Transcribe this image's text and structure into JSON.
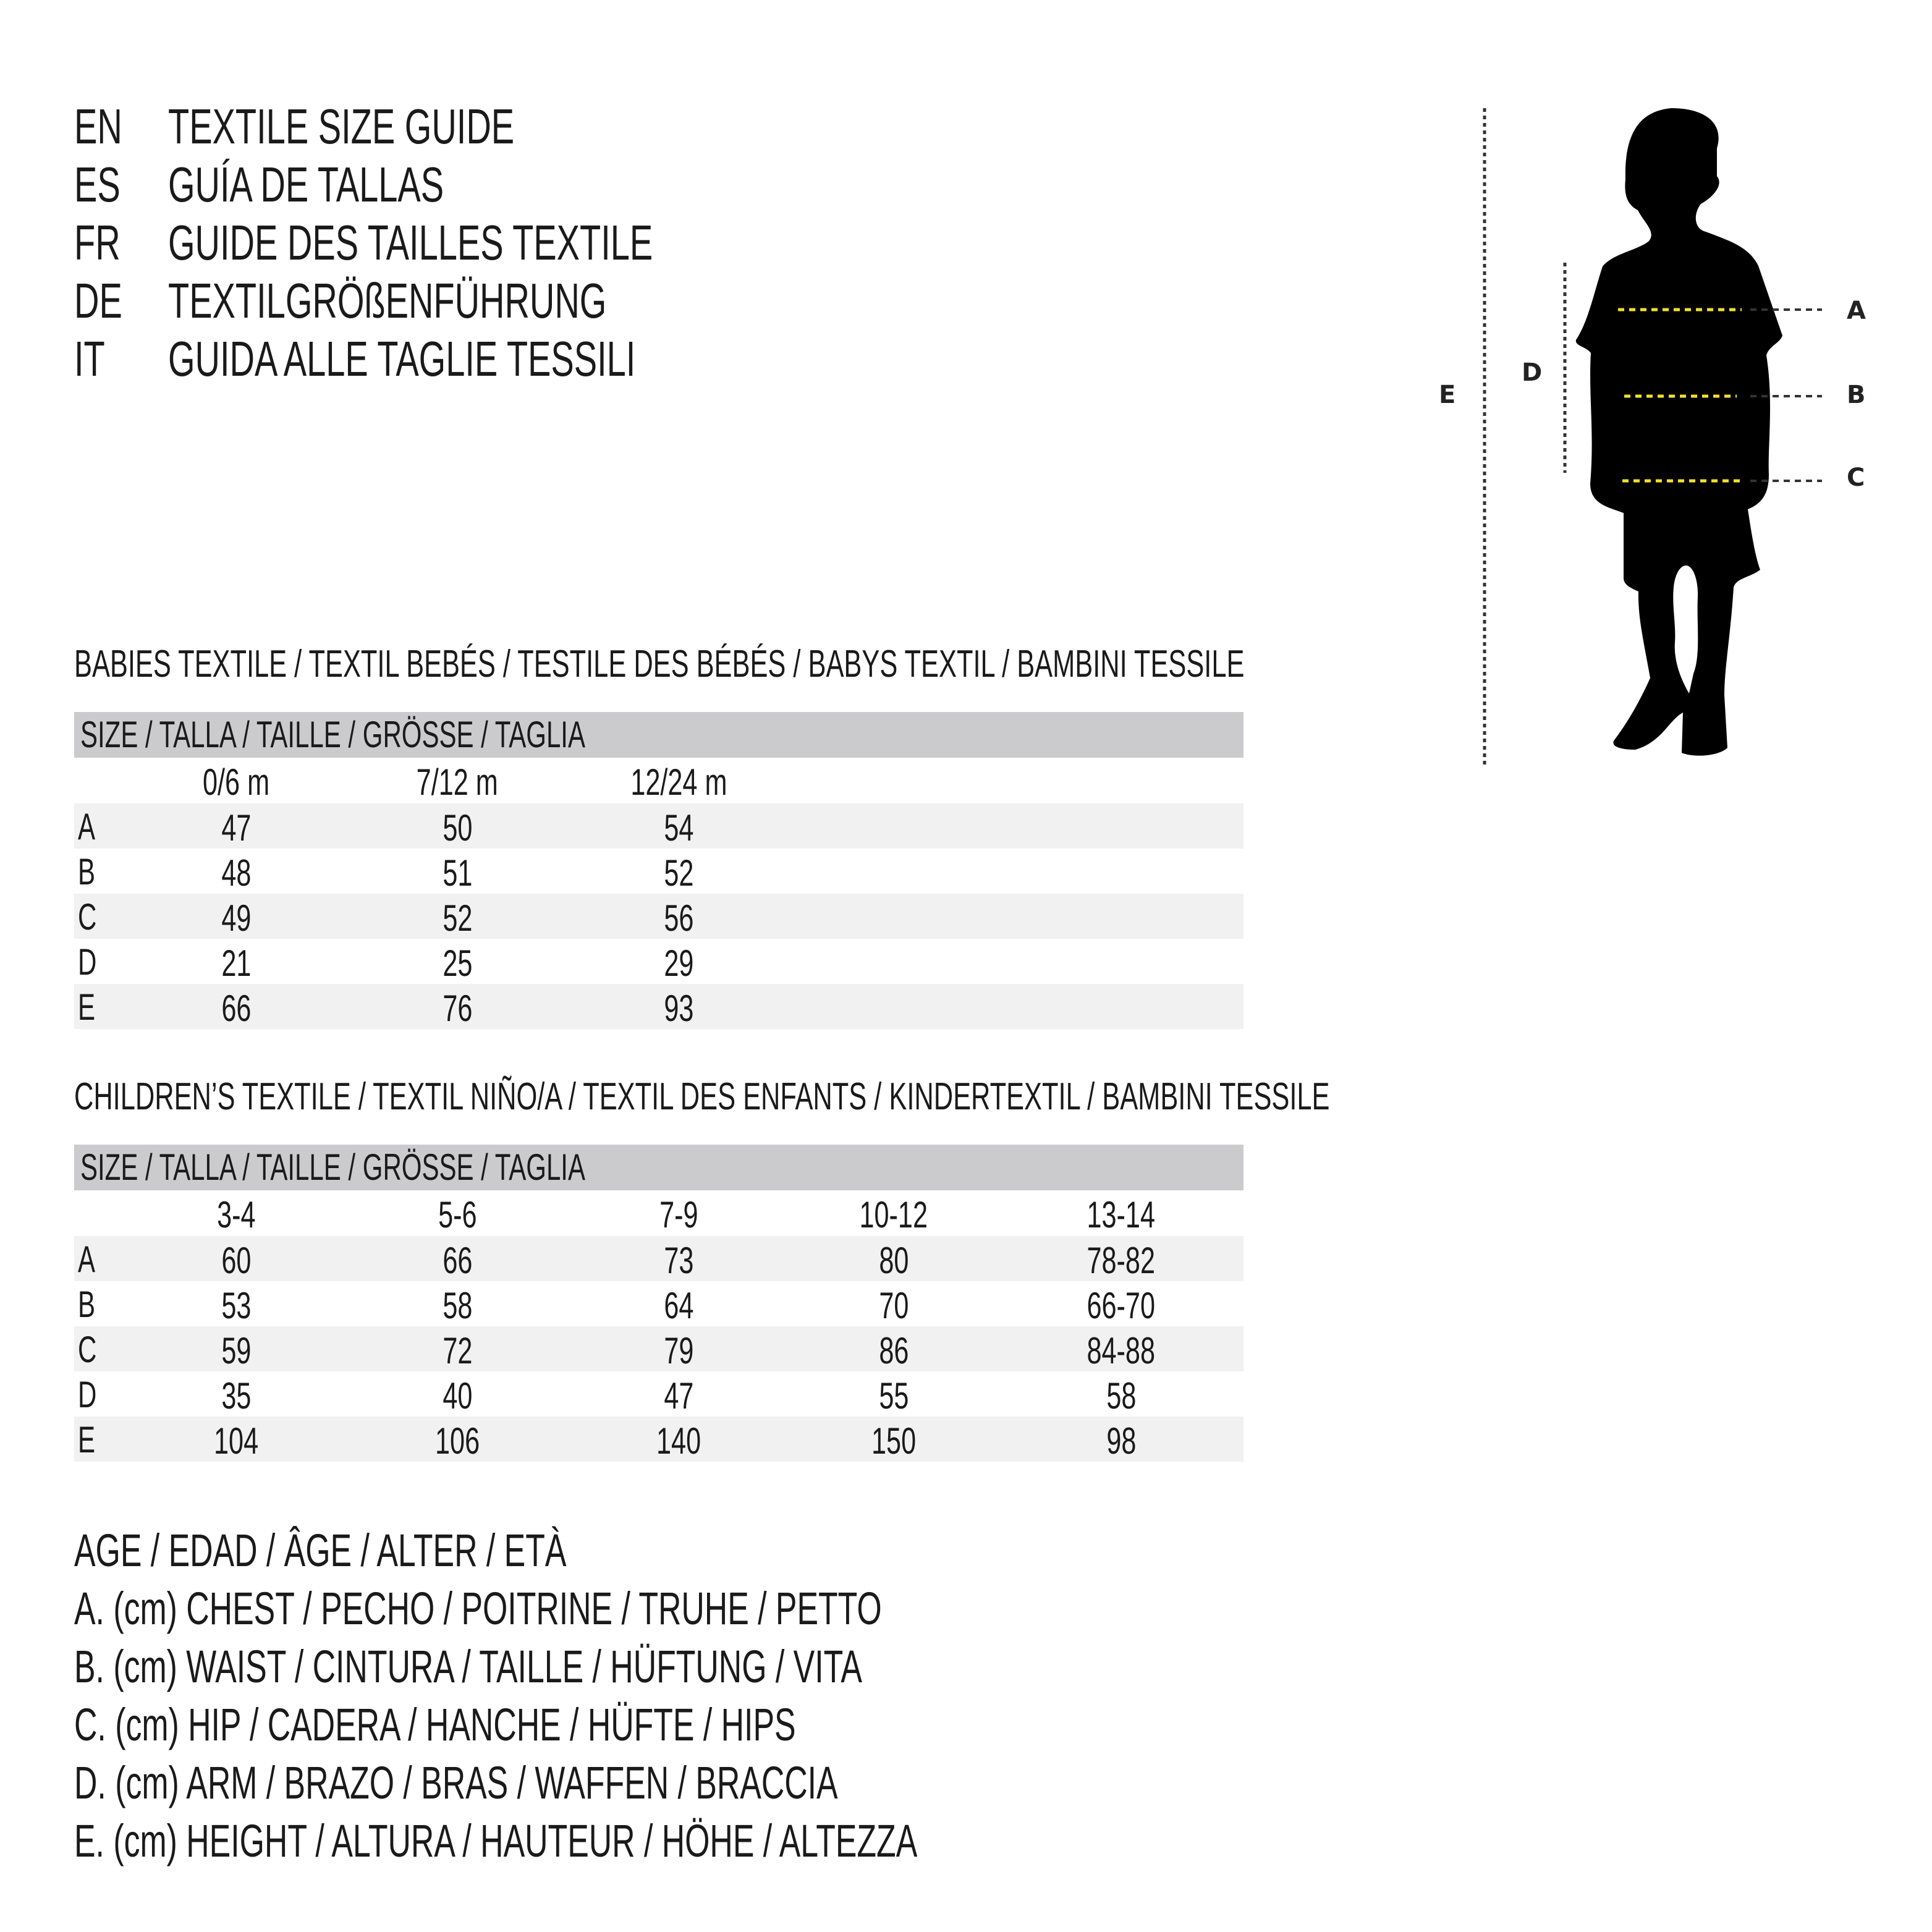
{
  "titles": [
    {
      "code": "EN",
      "text": "TEXTILE SIZE GUIDE"
    },
    {
      "code": "ES",
      "text": "GUÍA DE TALLAS"
    },
    {
      "code": "FR",
      "text": "GUIDE DES TAILLES TEXTILE"
    },
    {
      "code": "DE",
      "text": "TEXTILGRÖßENFÜHRUNG"
    },
    {
      "code": "IT",
      "text": "GUIDA ALLE TAGLIE TESSILI"
    }
  ],
  "babies": {
    "heading": "BABIES TEXTILE / TEXTIL BEBÉS / TESTILE DES BÉBÉS / BABYS TEXTIL / BAMBINI TESSILE",
    "size_label": "SIZE / TALLA / TAILLE / GRÖSSE / TAGLIA",
    "columns": [
      "0/6 m",
      "7/12 m",
      "12/24 m"
    ],
    "rows": [
      {
        "label": "A",
        "values": [
          "47",
          "50",
          "54"
        ]
      },
      {
        "label": "B",
        "values": [
          "48",
          "51",
          "52"
        ]
      },
      {
        "label": "C",
        "values": [
          "49",
          "52",
          "56"
        ]
      },
      {
        "label": "D",
        "values": [
          "21",
          "25",
          "29"
        ]
      },
      {
        "label": "E",
        "values": [
          "66",
          "76",
          "93"
        ]
      }
    ]
  },
  "children": {
    "heading": "CHILDREN’S TEXTILE / TEXTIL NIÑO/A / TEXTIL DES ENFANTS / KINDERTEXTIL / BAMBINI TESSILE",
    "size_label": "SIZE / TALLA / TAILLE / GRÖSSE / TAGLIA",
    "columns": [
      "3-4",
      "5-6",
      "7-9",
      "10-12",
      "13-14"
    ],
    "rows": [
      {
        "label": "A",
        "values": [
          "60",
          "66",
          "73",
          "80",
          "78-82"
        ]
      },
      {
        "label": "B",
        "values": [
          "53",
          "58",
          "64",
          "70",
          "66-70"
        ]
      },
      {
        "label": "C",
        "values": [
          "59",
          "72",
          "79",
          "86",
          "84-88"
        ]
      },
      {
        "label": "D",
        "values": [
          "35",
          "40",
          "47",
          "55",
          "58"
        ]
      },
      {
        "label": "E",
        "values": [
          "104",
          "106",
          "140",
          "150",
          "98"
        ]
      }
    ]
  },
  "legend": [
    "AGE / EDAD / ÂGE / ALTER / ETÀ",
    "A. (cm) CHEST / PECHO / POITRINE / TRUHE / PETTO",
    "B. (cm) WAIST / CINTURA / TAILLE / HÜFTUNG / VITA",
    "C. (cm) HIP / CADERA / HANCHE / HÜFTE / HIPS",
    "D. (cm) ARM / BRAZO / BRAS / WAFFEN / BRACCIA",
    "E. (cm) HEIGHT / ALTURA / HAUTEUR / HÖHE / ALTEZZA"
  ],
  "figure": {
    "labels": {
      "A": "A",
      "B": "B",
      "C": "C",
      "D": "D",
      "E": "E"
    },
    "icon": "child-silhouette-icon",
    "colors": {
      "measure_line": "#f2e02a",
      "silhouette": "#000000",
      "band": "#cbcbcd",
      "row_shade": "#f1f1f1"
    }
  }
}
